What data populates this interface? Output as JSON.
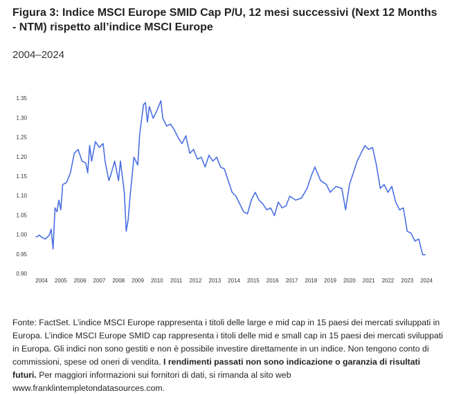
{
  "chart_data": {
    "type": "line",
    "title": "Figura 3: Indice MSCI Europe SMID Cap P/U, 12 mesi successivi (Next 12 Months - NTM) rispetto all’indice MSCI Europe",
    "subtitle": "2004–2024",
    "note": [
      "Fonte: FactSet. L’indice MSCI Europe rappresenta i titoli delle large e mid cap in 15 paesi dei mercati sviluppati in Europa. L’indice MSCI Europe SMID cap rappresenta i titoli delle mid e small cap in 15 paesi dei mercati sviluppati in Europa. Gli indici non sono gestiti e non è possibile investire direttamente in un indice. Non tengono conto di commissioni, spese od oneri di vendita.",
      "I rendimenti passati non sono indicazione o garanzia di risultati futuri.",
      "Per maggiori informazioni sui fornitori di dati, si rimanda al sito web www.franklintempletondatasources.com."
    ],
    "color": "#4a6fe3",
    "grid": false,
    "xlim": [
      2003.6,
      2024.5
    ],
    "xticks": [
      2004,
      2005,
      2006,
      2007,
      2008,
      2009,
      2010,
      2011,
      2012,
      2013,
      2014,
      2015,
      2016,
      2017,
      2018,
      2019,
      2020,
      2021,
      2022,
      2023,
      2024
    ],
    "ylim": [
      0.9,
      1.35
    ],
    "yticks": [
      {
        "value": 0.9,
        "label": "0.90"
      },
      0.95,
      {
        "value": 1.0,
        "label": "1.00"
      },
      1.05,
      {
        "value": 1.1,
        "label": "1.10"
      },
      1.15,
      {
        "value": 1.2,
        "label": "1.20"
      },
      1.25,
      {
        "value": 1.3,
        "label": "1.30"
      },
      1.35
    ],
    "x": [
      2003.7,
      2003.9,
      2004.0,
      2004.2,
      2004.4,
      2004.5,
      2004.6,
      2004.7,
      2004.8,
      2004.9,
      2005.0,
      2005.1,
      2005.3,
      2005.5,
      2005.7,
      2005.9,
      2006.1,
      2006.3,
      2006.4,
      2006.5,
      2006.6,
      2006.8,
      2007.0,
      2007.2,
      2007.3,
      2007.5,
      2007.6,
      2007.8,
      2008.0,
      2008.1,
      2008.3,
      2008.4,
      2008.5,
      2008.6,
      2008.8,
      2009.0,
      2009.1,
      2009.3,
      2009.4,
      2009.5,
      2009.6,
      2009.8,
      2010.0,
      2010.2,
      2010.3,
      2010.5,
      2010.7,
      2010.9,
      2011.1,
      2011.3,
      2011.5,
      2011.7,
      2011.9,
      2012.1,
      2012.3,
      2012.5,
      2012.7,
      2012.9,
      2013.1,
      2013.3,
      2013.5,
      2013.7,
      2013.9,
      2014.1,
      2014.3,
      2014.5,
      2014.7,
      2014.9,
      2015.1,
      2015.3,
      2015.5,
      2015.7,
      2015.9,
      2016.1,
      2016.3,
      2016.5,
      2016.7,
      2016.9,
      2017.2,
      2017.5,
      2017.8,
      2018.0,
      2018.2,
      2018.5,
      2018.8,
      2019.0,
      2019.3,
      2019.6,
      2019.8,
      2020.0,
      2020.2,
      2020.4,
      2020.6,
      2020.8,
      2021.0,
      2021.2,
      2021.4,
      2021.6,
      2021.8,
      2022.0,
      2022.2,
      2022.4,
      2022.6,
      2022.8,
      2023.0,
      2023.2,
      2023.4,
      2023.6,
      2023.8,
      2023.95
    ],
    "values": [
      0.995,
      1.0,
      0.995,
      0.99,
      1.0,
      1.015,
      0.965,
      1.07,
      1.06,
      1.09,
      1.065,
      1.13,
      1.135,
      1.16,
      1.21,
      1.22,
      1.19,
      1.185,
      1.16,
      1.23,
      1.19,
      1.24,
      1.225,
      1.235,
      1.19,
      1.14,
      1.155,
      1.19,
      1.14,
      1.19,
      1.11,
      1.01,
      1.04,
      1.1,
      1.2,
      1.18,
      1.26,
      1.335,
      1.34,
      1.29,
      1.33,
      1.3,
      1.32,
      1.345,
      1.3,
      1.28,
      1.285,
      1.27,
      1.25,
      1.235,
      1.255,
      1.21,
      1.22,
      1.195,
      1.2,
      1.175,
      1.205,
      1.19,
      1.2,
      1.175,
      1.17,
      1.14,
      1.11,
      1.1,
      1.08,
      1.06,
      1.055,
      1.09,
      1.11,
      1.09,
      1.08,
      1.065,
      1.07,
      1.05,
      1.085,
      1.07,
      1.075,
      1.1,
      1.09,
      1.095,
      1.12,
      1.15,
      1.175,
      1.14,
      1.13,
      1.11,
      1.125,
      1.12,
      1.065,
      1.13,
      1.16,
      1.19,
      1.21,
      1.23,
      1.22,
      1.225,
      1.18,
      1.12,
      1.13,
      1.11,
      1.125,
      1.085,
      1.065,
      1.07,
      1.01,
      1.005,
      0.985,
      0.99,
      0.95,
      0.95
    ]
  }
}
